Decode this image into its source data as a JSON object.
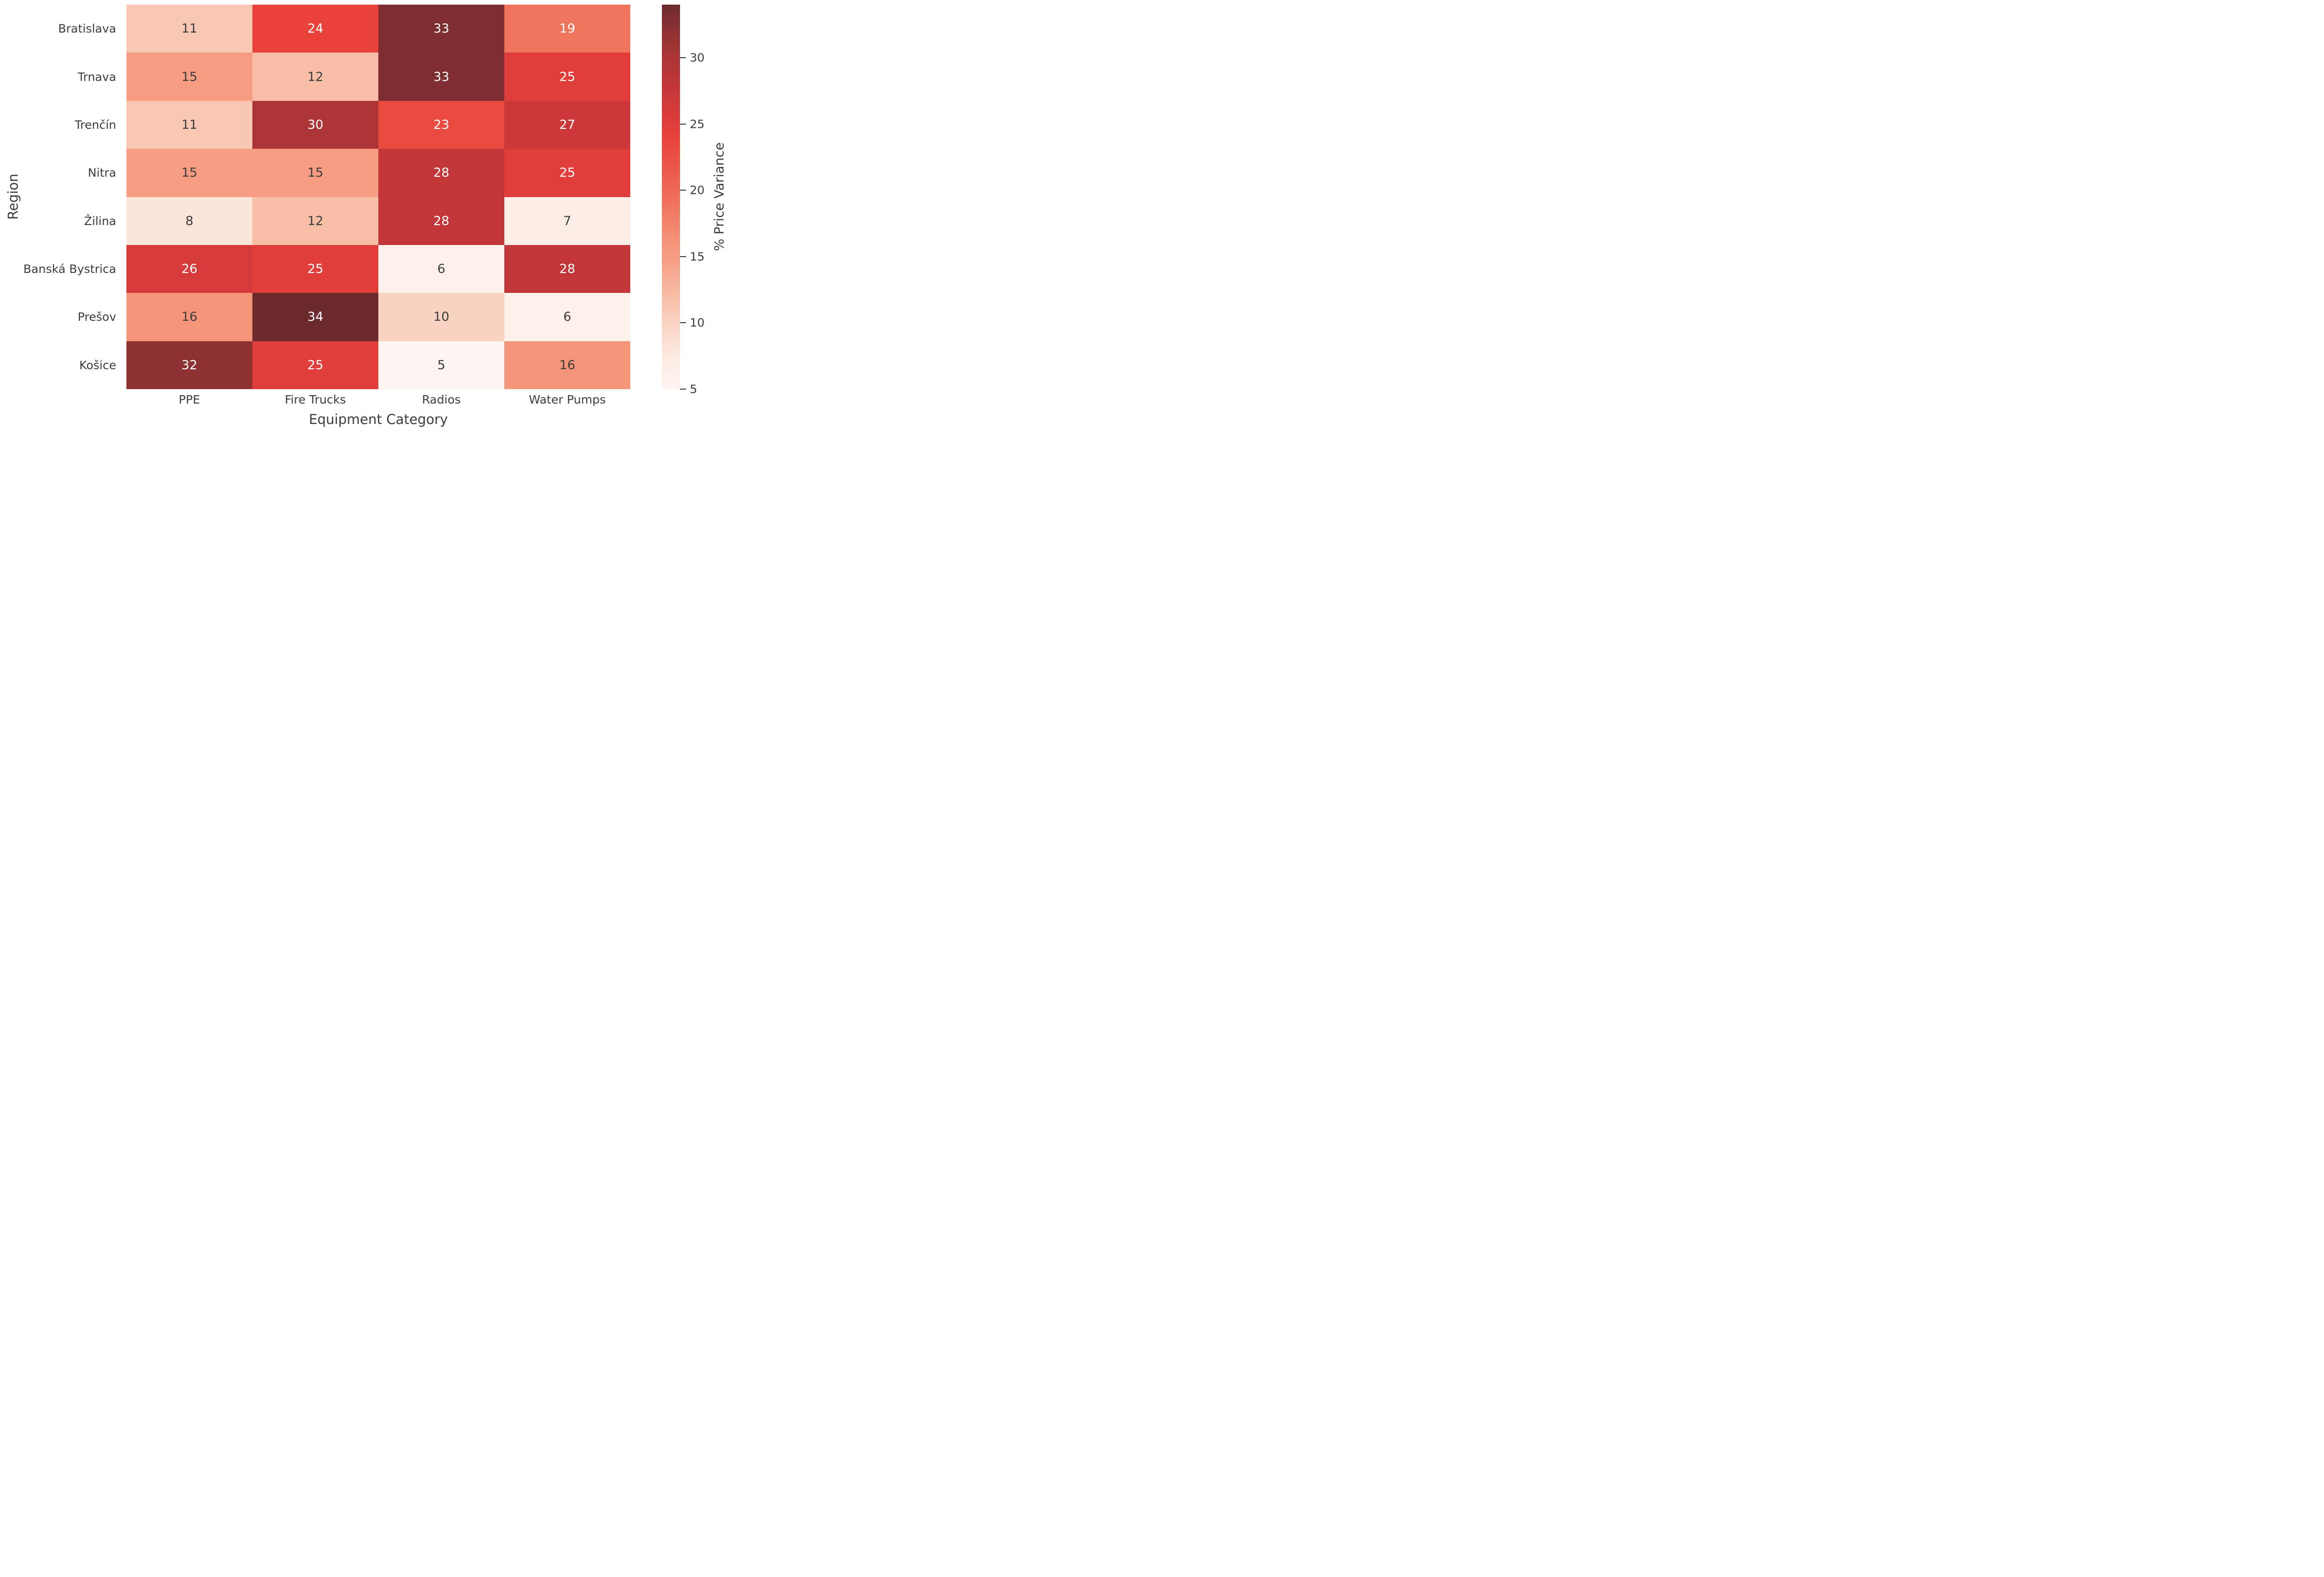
{
  "figure": {
    "background": "#ffffff",
    "text_color": "#3d3d3d"
  },
  "chart_data": {
    "type": "heatmap",
    "title": "",
    "xlabel": "Equipment Category",
    "ylabel": "Region",
    "x_categories": [
      "PPE",
      "Fire Trucks",
      "Radios",
      "Water Pumps"
    ],
    "y_categories": [
      "Bratislava",
      "Trnava",
      "Trenčín",
      "Nitra",
      "Žilina",
      "Banská Bystrica",
      "Prešov",
      "Košice"
    ],
    "values": [
      [
        11,
        24,
        33,
        19
      ],
      [
        15,
        12,
        33,
        25
      ],
      [
        11,
        30,
        23,
        27
      ],
      [
        15,
        15,
        28,
        25
      ],
      [
        8,
        12,
        28,
        7
      ],
      [
        26,
        25,
        6,
        28
      ],
      [
        16,
        34,
        10,
        6
      ],
      [
        32,
        25,
        5,
        16
      ]
    ],
    "vmin": 5,
    "vmax": 34,
    "grid": false,
    "annotation_color_dark": "#3d3d3d",
    "annotation_color_light": "#ffffff",
    "colorbar": {
      "label": "% Price Variance",
      "ticks": [
        30,
        25,
        20,
        15,
        10,
        5
      ],
      "position": "right"
    },
    "colormap_stops": [
      {
        "value": 5,
        "color": "#fef4f0"
      },
      {
        "value": 7,
        "color": "#fcede5"
      },
      {
        "value": 10,
        "color": "#f9d3c2"
      },
      {
        "value": 12,
        "color": "#f7bda6"
      },
      {
        "value": 15,
        "color": "#f69c83"
      },
      {
        "value": 16,
        "color": "#f49479"
      },
      {
        "value": 19,
        "color": "#f0735c"
      },
      {
        "value": 23,
        "color": "#ea4a40"
      },
      {
        "value": 24,
        "color": "#e8423a"
      },
      {
        "value": 25,
        "color": "#e03d3b"
      },
      {
        "value": 28,
        "color": "#c23538"
      },
      {
        "value": 30,
        "color": "#ad3536"
      },
      {
        "value": 32,
        "color": "#8e3132"
      },
      {
        "value": 33,
        "color": "#7d2d30"
      },
      {
        "value": 34,
        "color": "#6b2b2e"
      }
    ]
  }
}
